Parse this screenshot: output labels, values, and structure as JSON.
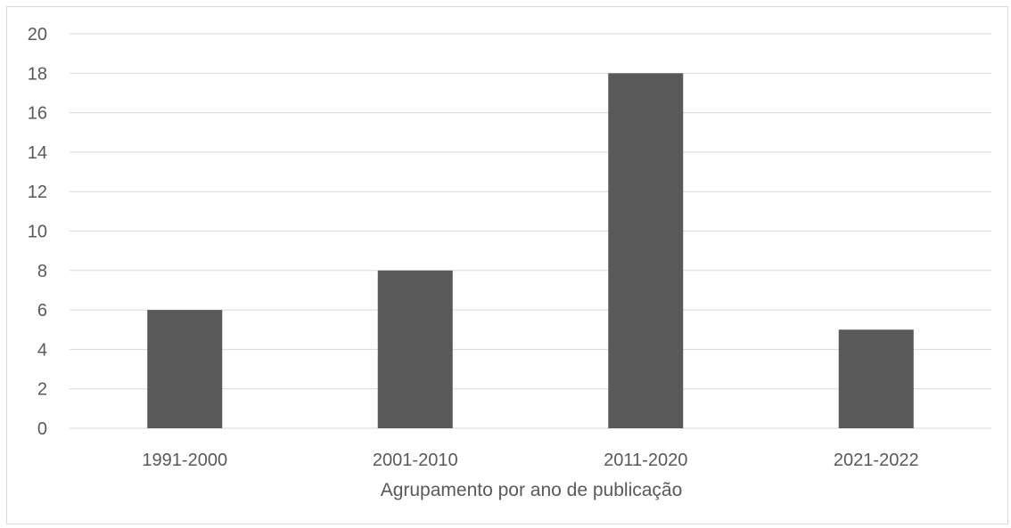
{
  "chart_data": {
    "type": "bar",
    "title": "",
    "xlabel": "Agrupamento por ano de publicação",
    "ylabel": "",
    "categories": [
      "1991-2000",
      "2001-2010",
      "2011-2020",
      "2021-2022"
    ],
    "values": [
      6,
      8,
      18,
      5
    ],
    "ylim": [
      0,
      20
    ],
    "yticks": [
      0,
      2,
      4,
      6,
      8,
      10,
      12,
      14,
      16,
      18,
      20
    ],
    "grid": true,
    "legend": "none",
    "colors": {
      "bar": "#595959",
      "grid": "#d9d9d9",
      "text": "#595959"
    }
  }
}
